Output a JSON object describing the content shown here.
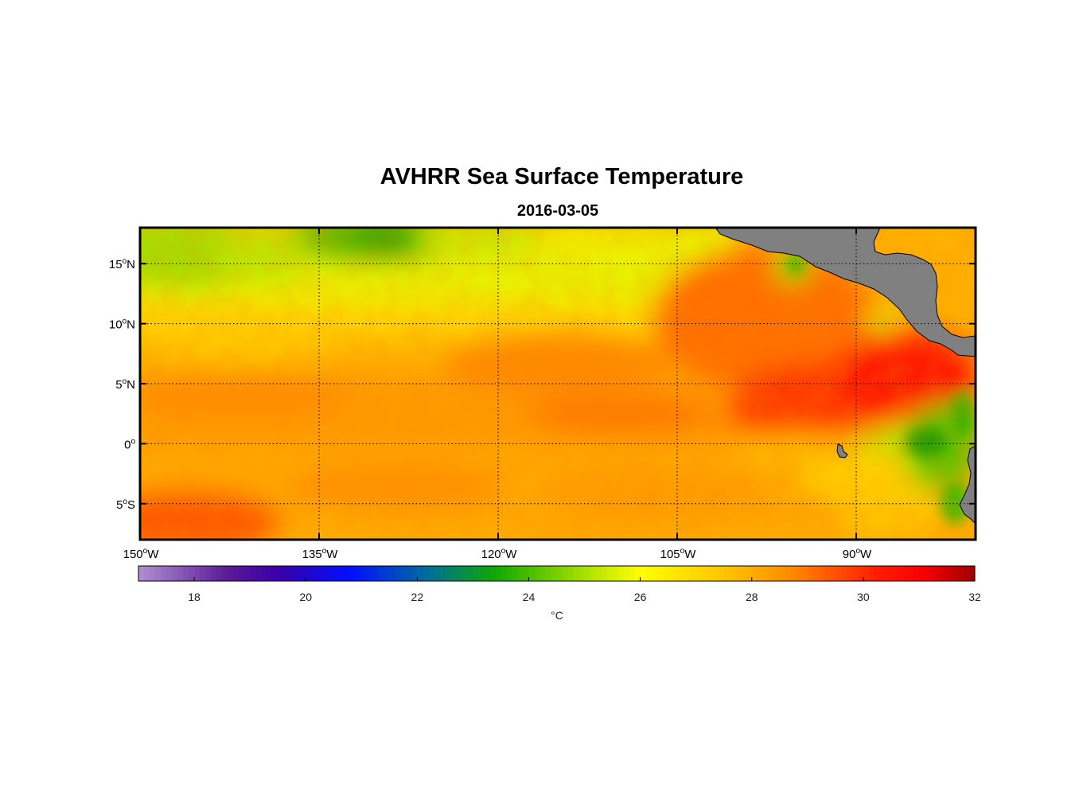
{
  "title": "AVHRR Sea Surface Temperature",
  "subtitle": "2016-03-05",
  "map": {
    "lon_range": [
      -150,
      -80
    ],
    "lat_range": [
      -8,
      18
    ],
    "grid": true,
    "lat_ticks": [
      {
        "value": 15,
        "label": "15",
        "suffix": "N"
      },
      {
        "value": 10,
        "label": "10",
        "suffix": "N"
      },
      {
        "value": 5,
        "label": "5",
        "suffix": "N"
      },
      {
        "value": 0,
        "label": "0",
        "suffix": ""
      },
      {
        "value": -5,
        "label": "5",
        "suffix": "S"
      }
    ],
    "lon_ticks": [
      {
        "value": -150,
        "label": "150",
        "suffix": "W"
      },
      {
        "value": -135,
        "label": "135",
        "suffix": "W"
      },
      {
        "value": -120,
        "label": "120",
        "suffix": "W"
      },
      {
        "value": -105,
        "label": "105",
        "suffix": "W"
      },
      {
        "value": -90,
        "label": "90",
        "suffix": "W"
      }
    ],
    "land_color": "#808080",
    "features": [
      "sst-field",
      "central-america-land",
      "south-america-land",
      "galapagos-islands"
    ]
  },
  "colorbar": {
    "min": 17,
    "max": 32,
    "ticks": [
      18,
      20,
      22,
      24,
      26,
      28,
      30,
      32
    ],
    "unit": "°C",
    "stops": [
      {
        "v": 17,
        "c": "#b090d0"
      },
      {
        "v": 18.6,
        "c": "#5a1a98"
      },
      {
        "v": 19.5,
        "c": "#3a00a8"
      },
      {
        "v": 20.8,
        "c": "#0010ff"
      },
      {
        "v": 22.2,
        "c": "#006e9a"
      },
      {
        "v": 23.4,
        "c": "#10a800"
      },
      {
        "v": 25,
        "c": "#a8e000"
      },
      {
        "v": 26,
        "c": "#ffff00"
      },
      {
        "v": 27.6,
        "c": "#ffc000"
      },
      {
        "v": 28.6,
        "c": "#ff9000"
      },
      {
        "v": 30.2,
        "c": "#ff2000"
      },
      {
        "v": 31,
        "c": "#ff0000"
      },
      {
        "v": 32,
        "c": "#a00000"
      }
    ]
  }
}
